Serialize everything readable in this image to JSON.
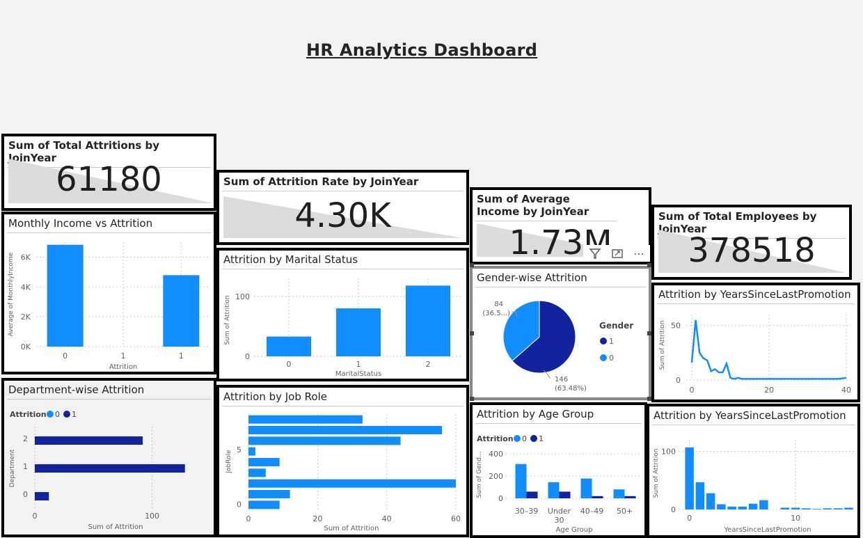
{
  "dashboard": {
    "title": "HR Analytics Dashboard"
  },
  "kpis": {
    "attritions": {
      "title": "Sum of Total Attritions by JoinYear",
      "value": "61180"
    },
    "rate": {
      "title": "Sum of Attrition Rate by JoinYear",
      "value": "4.30K"
    },
    "income": {
      "title": "Sum of Average Income by JoinYear",
      "value": "1.73M"
    },
    "employees": {
      "title": "Sum of Total Employees by JoinYear",
      "value": "378518"
    }
  },
  "visual_header": {
    "filter_icon": "filter-icon",
    "focus_icon": "focus-mode-icon",
    "more_icon": "more-options-icon",
    "more_glyph": "⋯"
  },
  "colors": {
    "light": "#118dff",
    "dark": "#12239e",
    "grid": "#c8c8c8"
  },
  "chart_data": [
    {
      "id": "monthly",
      "type": "bar",
      "title": "Monthly Income vs Attrition",
      "xlabel": "Attrition",
      "ylabel": "Average of MonthlyIncome",
      "categories": [
        "0",
        "1",
        "1"
      ],
      "values": [
        6830,
        null,
        4790
      ],
      "yticks": [
        "0K",
        "2K",
        "4K",
        "6K"
      ],
      "ylim": [
        0,
        7000
      ]
    },
    {
      "id": "marital",
      "type": "bar",
      "title": "Attrition by Marital Status",
      "xlabel": "MaritalStatus",
      "ylabel": "Sum of Attrition",
      "categories": [
        "0",
        "1",
        "2"
      ],
      "values": [
        33,
        80,
        118
      ],
      "yticks": [
        "0",
        "100"
      ],
      "ylim": [
        0,
        130
      ]
    },
    {
      "id": "gender",
      "type": "pie",
      "title": "Gender-wise Attrition",
      "legend_title": "Gender",
      "slices": [
        {
          "label": "1",
          "value": 146,
          "pct": "(63.48%)"
        },
        {
          "label": "0",
          "value": 84,
          "pct": "(36.5...)"
        }
      ]
    },
    {
      "id": "promo_line",
      "type": "line",
      "title": "Attrition by YearsSinceLastPromotion",
      "ylabel": "Sum of Attrition",
      "x": [
        0,
        1,
        2,
        3,
        4,
        5,
        6,
        7,
        8,
        9,
        10,
        11,
        12,
        13,
        14,
        15,
        20,
        25,
        30,
        35,
        38,
        40
      ],
      "y": [
        16,
        55,
        25,
        20,
        18,
        8,
        10,
        7,
        7,
        15,
        2,
        1,
        2,
        1,
        1,
        1,
        1,
        1,
        1,
        1,
        1,
        2
      ],
      "xticks": [
        "0",
        "20",
        "40"
      ],
      "yticks": [
        "0",
        "50"
      ],
      "xlim": [
        0,
        40
      ],
      "ylim": [
        0,
        60
      ]
    },
    {
      "id": "dept",
      "type": "bar",
      "orientation": "horizontal",
      "title": "Department-wise Attrition",
      "xlabel": "Sum of Attrition",
      "ylabel": "Department",
      "legend_title": "Attrition",
      "legend": [
        "0",
        "1"
      ],
      "categories": [
        "2",
        "1",
        "0"
      ],
      "series": [
        {
          "name": "1",
          "values": [
            92,
            128,
            12
          ]
        }
      ],
      "xticks": [
        "0",
        "100"
      ],
      "xlim": [
        0,
        140
      ]
    },
    {
      "id": "jobrole",
      "type": "bar",
      "orientation": "horizontal",
      "title": "Attrition by Job Role",
      "xlabel": "Sum of Attrition",
      "ylabel": "JobRole",
      "values": [
        33,
        56,
        44,
        2,
        9,
        5,
        60,
        12,
        9
      ],
      "yticks": [
        "5",
        "0"
      ],
      "xticks": [
        "0",
        "20",
        "40",
        "60"
      ],
      "xlim": [
        0,
        60
      ]
    },
    {
      "id": "age",
      "type": "bar",
      "title": "Attrition by Age Group",
      "xlabel": "Age Group",
      "ylabel": "Sum of Gend...",
      "legend_title": "Attrition",
      "legend": [
        "0",
        "1"
      ],
      "categories": [
        "30–39",
        "Under 30",
        "40–49",
        "50+"
      ],
      "series": [
        {
          "name": "0",
          "values": [
            308,
            145,
            178,
            80
          ]
        },
        {
          "name": "1",
          "values": [
            60,
            60,
            20,
            20
          ]
        }
      ],
      "yticks": [
        "0",
        "200",
        "400"
      ],
      "ylim": [
        0,
        450
      ]
    },
    {
      "id": "promo_bar",
      "type": "bar",
      "title": "Attrition by YearsSinceLastPromotion",
      "xlabel": "YearsSinceLastPromotion",
      "ylabel": "Sum of Attrition",
      "x": [
        0,
        1,
        2,
        3,
        4,
        5,
        6,
        7,
        9,
        10,
        11,
        12,
        13,
        14,
        15
      ],
      "values": [
        107,
        47,
        28,
        9,
        5,
        5,
        10,
        16,
        3,
        3,
        2,
        1,
        2,
        2,
        3
      ],
      "xticks": [
        "0",
        "10"
      ],
      "yticks": [
        "0",
        "100"
      ],
      "xlim": [
        -0.5,
        15.5
      ],
      "ylim": [
        0,
        120
      ]
    }
  ]
}
